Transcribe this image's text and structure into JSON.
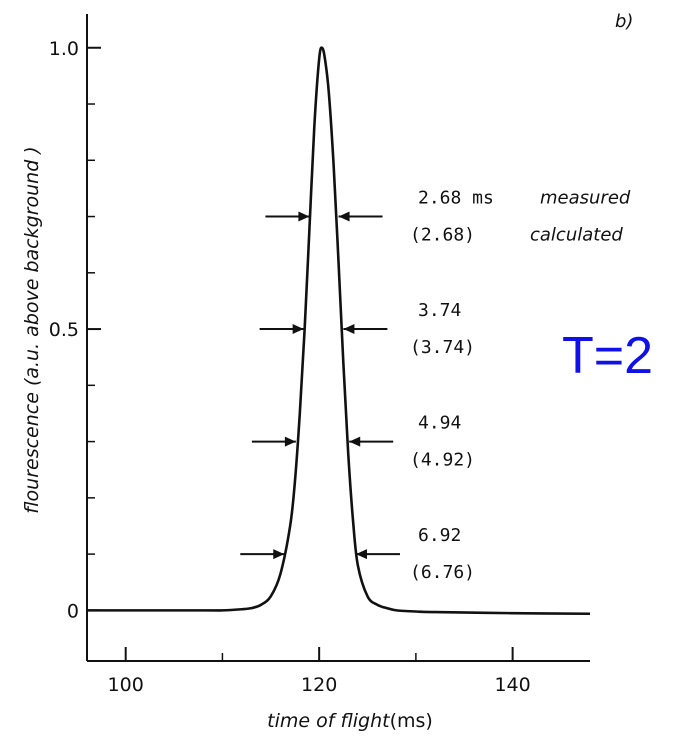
{
  "chart_data": {
    "type": "line",
    "panel_label": "b)",
    "xlabel": "time of flight",
    "xlabel_unit": "(ms)",
    "ylabel": "flourescence (a.u. above background )",
    "xlim": [
      96,
      148
    ],
    "ylim": [
      -0.09,
      1.06
    ],
    "x_ticks": [
      100,
      120,
      140
    ],
    "x_tick_labels": [
      "100",
      "120",
      "140"
    ],
    "x_minor_ticks": [
      110,
      130
    ],
    "y_ticks": [
      0,
      0.5,
      1.0
    ],
    "y_tick_labels": [
      "0",
      "0.5",
      "1.0"
    ],
    "y_minor_ticks": [
      0.1,
      0.2,
      0.3,
      0.4,
      0.6,
      0.7,
      0.8,
      0.9
    ],
    "series": [
      {
        "peak_center": 120.3,
        "peak_height": 1.0,
        "baseline": 0.0,
        "x": [
          96,
          108,
          110,
          112,
          113,
          114,
          115,
          116,
          117,
          117.5,
          118,
          118.5,
          119,
          119.5,
          120,
          120.3,
          120.6,
          121,
          121.5,
          122,
          122.5,
          123,
          123.5,
          124,
          125,
          126,
          127,
          128,
          130,
          132,
          140,
          148
        ],
        "y": [
          0.0,
          0.0,
          0.0,
          0.002,
          0.004,
          0.01,
          0.025,
          0.065,
          0.15,
          0.23,
          0.35,
          0.5,
          0.68,
          0.86,
          0.98,
          1.0,
          0.98,
          0.92,
          0.79,
          0.62,
          0.44,
          0.28,
          0.16,
          0.08,
          0.025,
          0.01,
          0.004,
          0.0,
          -0.002,
          -0.003,
          -0.005,
          -0.006
        ]
      }
    ],
    "width_markers": [
      {
        "level": 0.7,
        "left_x": 119.2,
        "right_x": 121.8,
        "measured": "2.68 ms",
        "calculated": "(2.68)"
      },
      {
        "level": 0.5,
        "left_x": 118.6,
        "right_x": 122.3,
        "measured": "3.74",
        "calculated": "(3.74)"
      },
      {
        "level": 0.3,
        "left_x": 117.8,
        "right_x": 122.9,
        "measured": "4.94",
        "calculated": "(4.92)"
      },
      {
        "level": 0.1,
        "left_x": 116.6,
        "right_x": 123.6,
        "measured": "6.92",
        "calculated": "(6.76)"
      }
    ],
    "legend_words": {
      "measured": "measured",
      "calculated": "calculated"
    }
  },
  "overlay": {
    "label": "T=2",
    "color": "#1010e8"
  }
}
